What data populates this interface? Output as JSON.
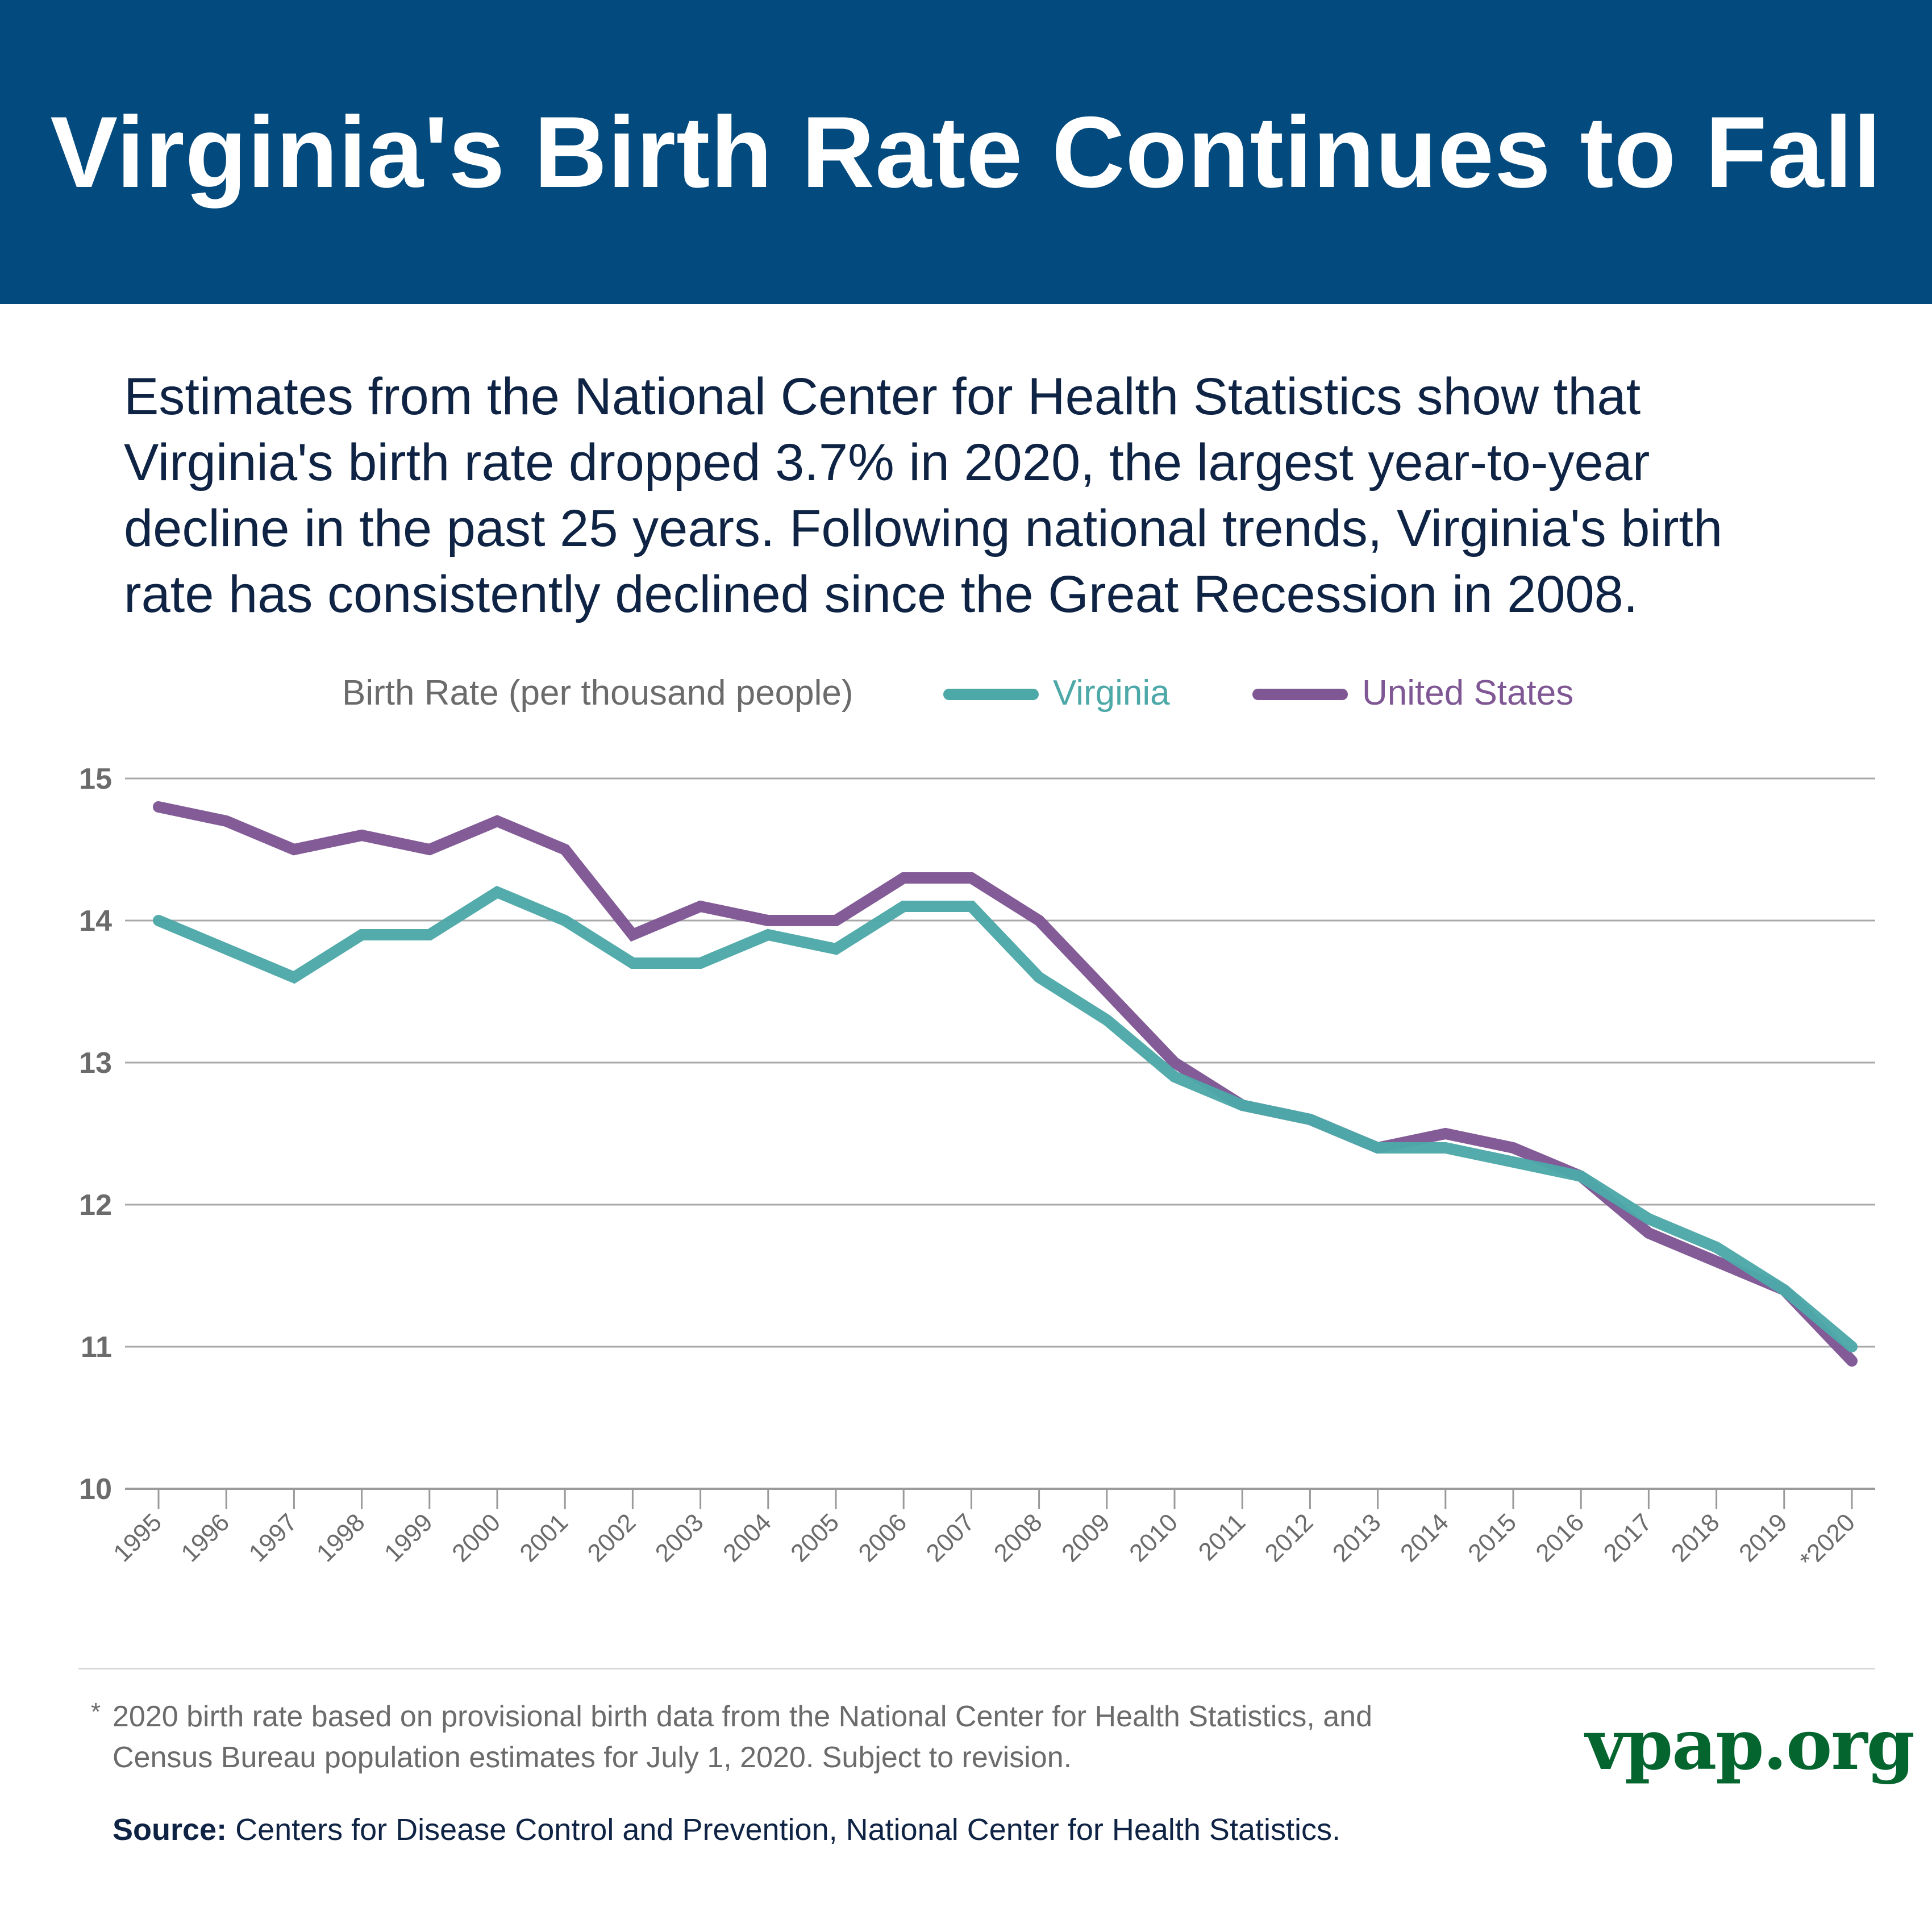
{
  "header": {
    "title": "Virginia's Birth Rate Continues to Fall",
    "background_color": "#034a7e"
  },
  "intro": {
    "lines": [
      "Estimates from the National Center for Health Statistics show that",
      "Virginia's birth rate dropped 3.7% in 2020, the largest year-to-year",
      "decline in the past 25 years. Following national trends, Virginia's birth",
      "rate has consistently declined since the Great Recession in 2008."
    ]
  },
  "legend": {
    "title": "Birth Rate (per thousand people)",
    "items": [
      {
        "label": "Virginia",
        "color": "#4da8a8"
      },
      {
        "label": "United States",
        "color": "#7f5794"
      }
    ]
  },
  "chart_data": {
    "type": "line",
    "title": "",
    "xlabel": "",
    "ylabel": "Birth Rate (per thousand people)",
    "ylim": [
      10,
      15
    ],
    "yticks": [
      "10",
      "11",
      "12",
      "13",
      "14",
      "15"
    ],
    "grid": true,
    "legend_position": "top-center",
    "x": [
      "1995",
      "1996",
      "1997",
      "1998",
      "1999",
      "2000",
      "2001",
      "2002",
      "2003",
      "2004",
      "2005",
      "2006",
      "2007",
      "2008",
      "2009",
      "2010",
      "2011",
      "2012",
      "2013",
      "2014",
      "2015",
      "2016",
      "2017",
      "2018",
      "2019",
      "*2020"
    ],
    "series": [
      {
        "name": "Virginia",
        "color": "#4da8a8",
        "values": [
          14.0,
          13.8,
          13.6,
          13.9,
          13.9,
          14.2,
          14.0,
          13.7,
          13.7,
          13.9,
          13.8,
          14.1,
          14.1,
          13.6,
          13.3,
          12.9,
          12.7,
          12.6,
          12.4,
          12.4,
          12.3,
          12.2,
          11.9,
          11.7,
          11.4,
          11.0
        ]
      },
      {
        "name": "United States",
        "color": "#7f5794",
        "values": [
          14.8,
          14.7,
          14.5,
          14.6,
          14.5,
          14.7,
          14.5,
          13.9,
          14.1,
          14.0,
          14.0,
          14.3,
          14.3,
          14.0,
          13.5,
          13.0,
          12.7,
          12.6,
          12.4,
          12.5,
          12.4,
          12.2,
          11.8,
          11.6,
          11.4,
          10.9
        ]
      }
    ]
  },
  "footnote": {
    "marker": "*",
    "lines": [
      "2020 birth rate based on provisional birth data from the National Center for Health Statistics, and",
      "Census Bureau population estimates for July 1, 2020. Subject to revision."
    ]
  },
  "source": {
    "label": "Source:",
    "text": " Centers for Disease Control and Prevention, National Center for Health Statistics."
  },
  "brand": {
    "text": "vpap.org",
    "color": "#05652f"
  }
}
